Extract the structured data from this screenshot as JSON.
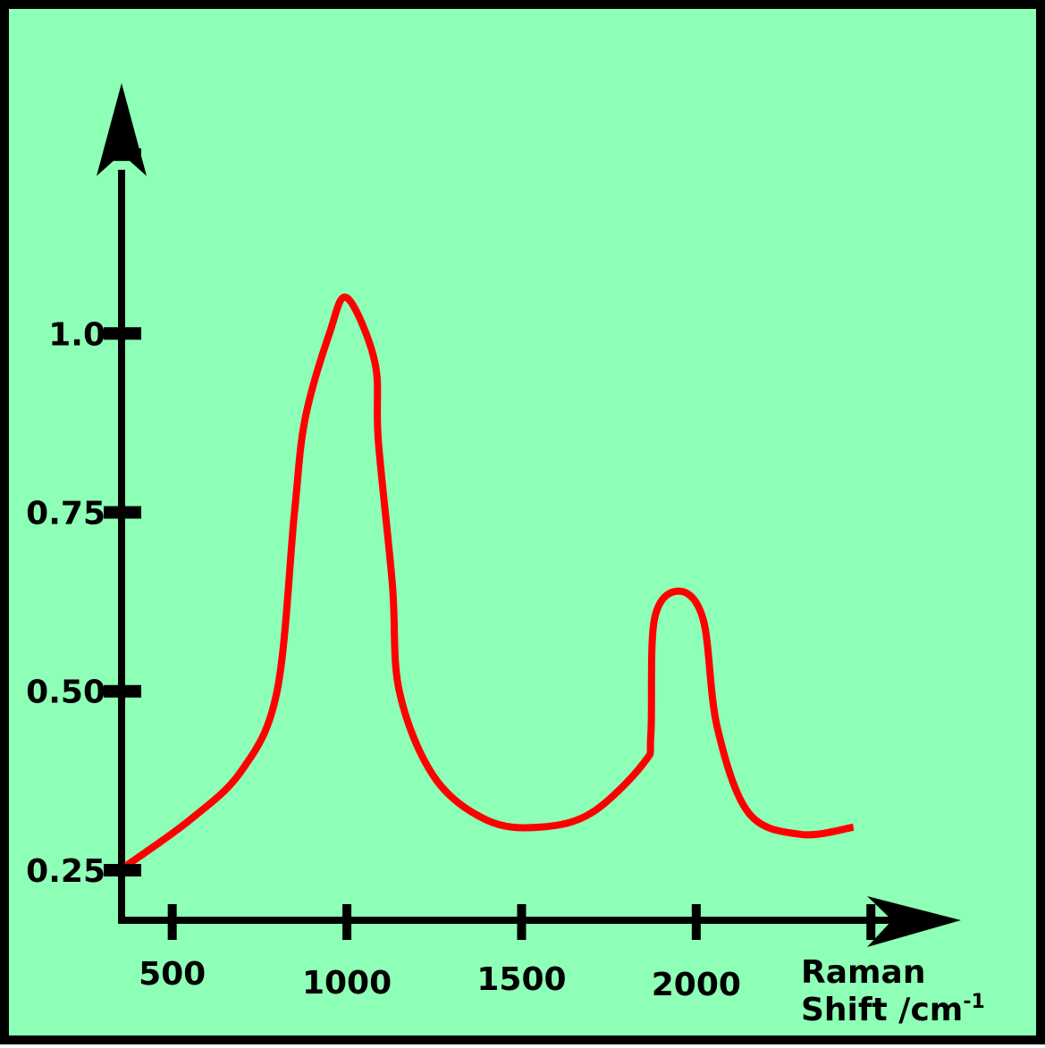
{
  "chart_data": {
    "type": "line",
    "title": "",
    "xlabel_line1": "Raman",
    "xlabel_line2": "Shift /cm",
    "xlabel_superscript": "-1",
    "ylabel": "",
    "x_ticks": [
      {
        "value": 500,
        "label": "500"
      },
      {
        "value": 1000,
        "label": "1000"
      },
      {
        "value": 1500,
        "label": "1500"
      },
      {
        "value": 2000,
        "label": "2000"
      },
      {
        "value": 2500,
        "label": ""
      }
    ],
    "y_ticks": [
      {
        "value": 0.25,
        "label": "0.25"
      },
      {
        "value": 0.5,
        "label": "0.50"
      },
      {
        "value": 0.75,
        "label": "0.75"
      },
      {
        "value": 1.0,
        "label": "1.0"
      },
      {
        "value": 1.25,
        "label": ""
      }
    ],
    "xlim": [
      355,
      2745
    ],
    "ylim": [
      0.18,
      1.35
    ],
    "grid": false,
    "background_color": "#8effb6",
    "series_color": "#ff0000",
    "series": [
      {
        "values": [
          {
            "x": 350,
            "y": 0.25
          },
          {
            "x": 550,
            "y": 0.32
          },
          {
            "x": 700,
            "y": 0.39
          },
          {
            "x": 800,
            "y": 0.5
          },
          {
            "x": 850,
            "y": 0.75
          },
          {
            "x": 880,
            "y": 0.88
          },
          {
            "x": 950,
            "y": 1.0
          },
          {
            "x": 1000,
            "y": 1.05
          },
          {
            "x": 1080,
            "y": 0.96
          },
          {
            "x": 1090,
            "y": 0.85
          },
          {
            "x": 1130,
            "y": 0.65
          },
          {
            "x": 1150,
            "y": 0.5
          },
          {
            "x": 1250,
            "y": 0.38
          },
          {
            "x": 1400,
            "y": 0.32
          },
          {
            "x": 1550,
            "y": 0.31
          },
          {
            "x": 1700,
            "y": 0.33
          },
          {
            "x": 1850,
            "y": 0.4
          },
          {
            "x": 1870,
            "y": 0.44
          },
          {
            "x": 1880,
            "y": 0.6
          },
          {
            "x": 1950,
            "y": 0.64
          },
          {
            "x": 2020,
            "y": 0.6
          },
          {
            "x": 2060,
            "y": 0.45
          },
          {
            "x": 2150,
            "y": 0.33
          },
          {
            "x": 2300,
            "y": 0.3
          },
          {
            "x": 2450,
            "y": 0.31
          }
        ]
      }
    ]
  }
}
